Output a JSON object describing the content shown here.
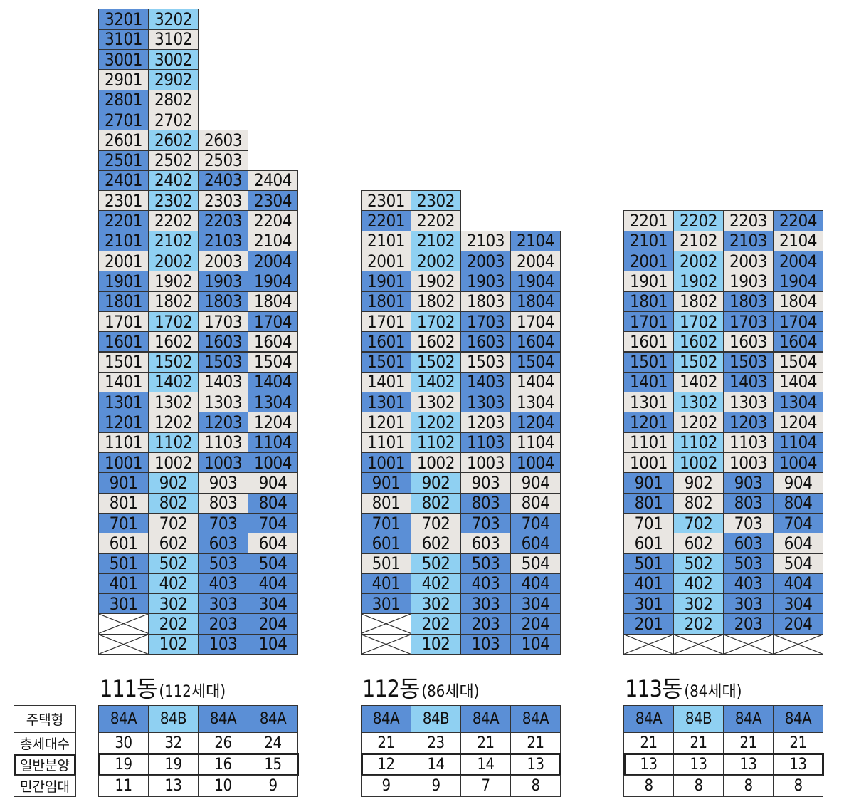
{
  "colors": {
    "dark": "#5b8fd6",
    "light": "#8fd0f2",
    "grey": "#e9e6e2",
    "empty": "#ffffff"
  },
  "legend_rows": [
    "주택형",
    "총세대수",
    "일반분양",
    "민간임대"
  ],
  "buildings": [
    {
      "name": "111동",
      "count": "(112세대)",
      "types": [
        "84A",
        "84B",
        "84A",
        "84A"
      ],
      "total": [
        "30",
        "32",
        "26",
        "24"
      ],
      "general": [
        "19",
        "19",
        "16",
        "15"
      ],
      "rental": [
        "11",
        "13",
        "10",
        "9"
      ],
      "rows": [
        [
          "d:3201",
          "l:3202"
        ],
        [
          "d:3101",
          "g:3102"
        ],
        [
          "d:3001",
          "l:3002"
        ],
        [
          "g:2901",
          "l:2902"
        ],
        [
          "d:2801",
          "g:2802"
        ],
        [
          "d:2701",
          "g:2702"
        ],
        [
          "g:2601",
          "l:2602",
          "g:2603"
        ],
        [
          "d:2501",
          "g:2502",
          "g:2503"
        ],
        [
          "d:2401",
          "l:2402",
          "d:2403",
          "g:2404"
        ],
        [
          "g:2301",
          "l:2302",
          "g:2303",
          "d:2304"
        ],
        [
          "d:2201",
          "g:2202",
          "d:2203",
          "g:2204"
        ],
        [
          "d:2101",
          "l:2102",
          "d:2103",
          "g:2104"
        ],
        [
          "g:2001",
          "l:2002",
          "g:2003",
          "d:2004"
        ],
        [
          "d:1901",
          "g:1902",
          "d:1903",
          "d:1904"
        ],
        [
          "d:1801",
          "g:1802",
          "d:1803",
          "g:1804"
        ],
        [
          "g:1701",
          "l:1702",
          "g:1703",
          "d:1704"
        ],
        [
          "d:1601",
          "g:1602",
          "d:1603",
          "g:1604"
        ],
        [
          "g:1501",
          "l:1502",
          "d:1503",
          "g:1504"
        ],
        [
          "g:1401",
          "l:1402",
          "g:1403",
          "d:1404"
        ],
        [
          "d:1301",
          "g:1302",
          "g:1303",
          "d:1304"
        ],
        [
          "d:1201",
          "g:1202",
          "d:1203",
          "g:1204"
        ],
        [
          "g:1101",
          "l:1102",
          "g:1103",
          "d:1104"
        ],
        [
          "d:1001",
          "g:1002",
          "d:1003",
          "d:1004"
        ],
        [
          "d:901",
          "l:902",
          "g:903",
          "g:904"
        ],
        [
          "g:801",
          "l:802",
          "g:803",
          "d:804"
        ],
        [
          "d:701",
          "g:702",
          "d:703",
          "d:704"
        ],
        [
          "g:601",
          "g:602",
          "d:603",
          "g:604"
        ],
        [
          "d:501",
          "l:502",
          "d:503",
          "d:504"
        ],
        [
          "d:401",
          "l:402",
          "d:403",
          "d:404"
        ],
        [
          "d:301",
          "l:302",
          "d:303",
          "d:304"
        ],
        [
          "x:",
          "l:202",
          "d:203",
          "d:204"
        ],
        [
          "x:",
          "l:102",
          "d:103",
          "d:104"
        ]
      ]
    },
    {
      "name": "112동",
      "count": "(86세대)",
      "types": [
        "84A",
        "84B",
        "84A",
        "84A"
      ],
      "total": [
        "21",
        "23",
        "21",
        "21"
      ],
      "general": [
        "12",
        "14",
        "14",
        "13"
      ],
      "rental": [
        "9",
        "9",
        "7",
        "8"
      ],
      "rows": [
        [
          "g:2301",
          "l:2302"
        ],
        [
          "d:2201",
          "g:2202"
        ],
        [
          "g:2101",
          "l:2102",
          "g:2103",
          "d:2104"
        ],
        [
          "g:2001",
          "l:2002",
          "d:2003",
          "g:2004"
        ],
        [
          "d:1901",
          "g:1902",
          "d:1903",
          "d:1904"
        ],
        [
          "d:1801",
          "g:1802",
          "g:1803",
          "d:1804"
        ],
        [
          "g:1701",
          "l:1702",
          "d:1703",
          "g:1704"
        ],
        [
          "d:1601",
          "g:1602",
          "d:1603",
          "d:1604"
        ],
        [
          "d:1501",
          "l:1502",
          "g:1503",
          "d:1504"
        ],
        [
          "g:1401",
          "l:1402",
          "d:1403",
          "g:1404"
        ],
        [
          "d:1301",
          "g:1302",
          "d:1303",
          "g:1304"
        ],
        [
          "g:1201",
          "l:1202",
          "g:1203",
          "d:1204"
        ],
        [
          "g:1101",
          "l:1102",
          "d:1103",
          "g:1104"
        ],
        [
          "d:1001",
          "g:1002",
          "g:1003",
          "d:1004"
        ],
        [
          "d:901",
          "l:902",
          "g:903",
          "g:904"
        ],
        [
          "g:801",
          "l:802",
          "d:803",
          "g:804"
        ],
        [
          "d:701",
          "g:702",
          "d:703",
          "d:704"
        ],
        [
          "d:601",
          "g:602",
          "g:603",
          "d:604"
        ],
        [
          "g:501",
          "l:502",
          "d:503",
          "g:504"
        ],
        [
          "d:401",
          "l:402",
          "d:403",
          "d:404"
        ],
        [
          "d:301",
          "l:302",
          "d:303",
          "d:304"
        ],
        [
          "x:",
          "l:202",
          "d:203",
          "d:204"
        ],
        [
          "x:",
          "l:102",
          "d:103",
          "d:104"
        ]
      ]
    },
    {
      "name": "113동",
      "count": "(84세대)",
      "types": [
        "84A",
        "84B",
        "84A",
        "84A"
      ],
      "total": [
        "21",
        "21",
        "21",
        "21"
      ],
      "general": [
        "13",
        "13",
        "13",
        "13"
      ],
      "rental": [
        "8",
        "8",
        "8",
        "8"
      ],
      "rows": [
        [
          "g:2201",
          "l:2202",
          "g:2203",
          "d:2204"
        ],
        [
          "d:2101",
          "g:2102",
          "d:2103",
          "g:2104"
        ],
        [
          "d:2001",
          "l:2002",
          "g:2003",
          "d:2004"
        ],
        [
          "g:1901",
          "l:1902",
          "g:1903",
          "d:1904"
        ],
        [
          "d:1801",
          "g:1802",
          "d:1803",
          "g:1804"
        ],
        [
          "d:1701",
          "l:1702",
          "d:1703",
          "d:1704"
        ],
        [
          "g:1601",
          "l:1602",
          "g:1603",
          "d:1604"
        ],
        [
          "d:1501",
          "l:1502",
          "d:1503",
          "g:1504"
        ],
        [
          "d:1401",
          "g:1402",
          "d:1403",
          "g:1404"
        ],
        [
          "g:1301",
          "l:1302",
          "g:1303",
          "d:1304"
        ],
        [
          "d:1201",
          "g:1202",
          "d:1203",
          "g:1204"
        ],
        [
          "g:1101",
          "l:1102",
          "g:1103",
          "d:1104"
        ],
        [
          "g:1001",
          "l:1002",
          "g:1003",
          "d:1004"
        ],
        [
          "d:901",
          "g:902",
          "d:903",
          "g:904"
        ],
        [
          "d:801",
          "g:802",
          "d:803",
          "d:804"
        ],
        [
          "g:701",
          "l:702",
          "g:703",
          "d:704"
        ],
        [
          "g:601",
          "g:602",
          "d:603",
          "g:604"
        ],
        [
          "d:501",
          "l:502",
          "d:503",
          "g:504"
        ],
        [
          "d:401",
          "l:402",
          "d:403",
          "d:404"
        ],
        [
          "d:301",
          "l:302",
          "d:303",
          "d:304"
        ],
        [
          "d:201",
          "l:202",
          "d:203",
          "d:204"
        ],
        [
          "x:",
          "x:",
          "x:",
          "x:"
        ]
      ]
    }
  ]
}
